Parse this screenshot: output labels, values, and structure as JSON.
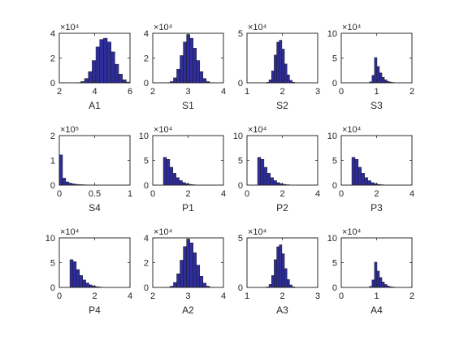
{
  "chart_data": [
    {
      "type": "bar",
      "title": "",
      "xlabel": "A1",
      "exponent": "×10⁴",
      "xlim": [
        2,
        6
      ],
      "ylim": [
        0,
        4
      ],
      "xticks": [
        "2",
        "4",
        "6"
      ],
      "yticks": [
        "0",
        "2",
        "4"
      ],
      "bin_edges": [
        3.0,
        6.0
      ],
      "values": [
        0.02,
        0.1,
        0.35,
        0.9,
        1.8,
        2.9,
        3.5,
        3.6,
        3.3,
        2.5,
        1.5,
        0.7,
        0.25,
        0.06
      ]
    },
    {
      "type": "bar",
      "title": "",
      "xlabel": "S1",
      "exponent": "×10⁴",
      "xlim": [
        2,
        4
      ],
      "ylim": [
        0,
        4
      ],
      "xticks": [
        "2",
        "3",
        "4"
      ],
      "yticks": [
        "0",
        "2",
        "4"
      ],
      "bin_edges": [
        2.4,
        3.7
      ],
      "values": [
        0.02,
        0.1,
        0.4,
        1.1,
        2.2,
        3.3,
        3.9,
        3.6,
        2.8,
        1.8,
        0.9,
        0.35,
        0.1,
        0.02
      ]
    },
    {
      "type": "bar",
      "title": "",
      "xlabel": "S2",
      "exponent": "×10⁴",
      "xlim": [
        1,
        3
      ],
      "ylim": [
        0,
        5
      ],
      "xticks": [
        "1",
        "2",
        "3"
      ],
      "yticks": [
        "0",
        "5"
      ],
      "bin_edges": [
        1.55,
        2.35
      ],
      "values": [
        0.05,
        0.3,
        1.2,
        2.8,
        4.1,
        4.3,
        3.4,
        1.9,
        0.8,
        0.25,
        0.06
      ]
    },
    {
      "type": "bar",
      "title": "",
      "xlabel": "S3",
      "exponent": "×10⁴",
      "xlim": [
        0,
        2
      ],
      "ylim": [
        0,
        10
      ],
      "xticks": [
        "0",
        "1",
        "2"
      ],
      "yticks": [
        "0",
        "5",
        "10"
      ],
      "bin_edges": [
        0.8,
        1.5
      ],
      "values": [
        0.2,
        1.5,
        5.1,
        3.3,
        2.0,
        1.1,
        0.6,
        0.3,
        0.15,
        0.08
      ]
    },
    {
      "type": "bar",
      "title": "",
      "xlabel": "S4",
      "exponent": "×10⁵",
      "xlim": [
        0,
        1
      ],
      "ylim": [
        0,
        2
      ],
      "xticks": [
        "0",
        "0.5",
        "1"
      ],
      "yticks": [
        "0",
        "1",
        "2"
      ],
      "bin_edges": [
        0.0,
        0.5
      ],
      "values": [
        1.22,
        0.28,
        0.13,
        0.08,
        0.05,
        0.03,
        0.02,
        0.015,
        0.01,
        0.008,
        0.005
      ]
    },
    {
      "type": "bar",
      "title": "",
      "xlabel": "P1",
      "exponent": "×10⁴",
      "xlim": [
        0,
        4
      ],
      "ylim": [
        0,
        10
      ],
      "xticks": [
        "0",
        "2",
        "4"
      ],
      "yticks": [
        "0",
        "5",
        "10"
      ],
      "bin_edges": [
        0.6,
        2.4
      ],
      "values": [
        5.6,
        5.2,
        3.6,
        2.4,
        1.5,
        0.9,
        0.5,
        0.3,
        0.15,
        0.08
      ]
    },
    {
      "type": "bar",
      "title": "",
      "xlabel": "P2",
      "exponent": "×10⁴",
      "xlim": [
        0,
        4
      ],
      "ylim": [
        0,
        10
      ],
      "xticks": [
        "0",
        "2",
        "4"
      ],
      "yticks": [
        "0",
        "5",
        "10"
      ],
      "bin_edges": [
        0.6,
        2.4
      ],
      "values": [
        5.6,
        5.2,
        3.6,
        2.4,
        1.5,
        0.9,
        0.5,
        0.3,
        0.15,
        0.08
      ]
    },
    {
      "type": "bar",
      "title": "",
      "xlabel": "P3",
      "exponent": "×10⁴",
      "xlim": [
        0,
        4
      ],
      "ylim": [
        0,
        10
      ],
      "xticks": [
        "0",
        "2",
        "4"
      ],
      "yticks": [
        "0",
        "5",
        "10"
      ],
      "bin_edges": [
        0.6,
        2.4
      ],
      "values": [
        5.6,
        5.2,
        3.6,
        2.4,
        1.5,
        0.9,
        0.5,
        0.3,
        0.15,
        0.08
      ]
    },
    {
      "type": "bar",
      "title": "",
      "xlabel": "P4",
      "exponent": "×10⁴",
      "xlim": [
        0,
        4
      ],
      "ylim": [
        0,
        10
      ],
      "xticks": [
        "0",
        "2",
        "4"
      ],
      "yticks": [
        "0",
        "5",
        "10"
      ],
      "bin_edges": [
        0.6,
        2.4
      ],
      "values": [
        5.6,
        5.2,
        3.6,
        2.4,
        1.5,
        0.9,
        0.5,
        0.3,
        0.15,
        0.08
      ]
    },
    {
      "type": "bar",
      "title": "",
      "xlabel": "A2",
      "exponent": "×10⁴",
      "xlim": [
        2,
        4
      ],
      "ylim": [
        0,
        4
      ],
      "xticks": [
        "2",
        "3",
        "4"
      ],
      "yticks": [
        "0",
        "2",
        "4"
      ],
      "bin_edges": [
        2.4,
        3.7
      ],
      "values": [
        0.02,
        0.1,
        0.4,
        1.1,
        2.2,
        3.3,
        3.9,
        3.6,
        2.8,
        1.8,
        0.9,
        0.35,
        0.1,
        0.02
      ]
    },
    {
      "type": "bar",
      "title": "",
      "xlabel": "A3",
      "exponent": "×10⁴",
      "xlim": [
        1,
        3
      ],
      "ylim": [
        0,
        5
      ],
      "xticks": [
        "1",
        "2",
        "3"
      ],
      "yticks": [
        "0",
        "5"
      ],
      "bin_edges": [
        1.55,
        2.35
      ],
      "values": [
        0.05,
        0.3,
        1.2,
        2.8,
        4.1,
        4.3,
        3.4,
        1.9,
        0.8,
        0.25,
        0.06
      ]
    },
    {
      "type": "bar",
      "title": "",
      "xlabel": "A4",
      "exponent": "×10⁴",
      "xlim": [
        0,
        2
      ],
      "ylim": [
        0,
        10
      ],
      "xticks": [
        "0",
        "1",
        "2"
      ],
      "yticks": [
        "0",
        "5",
        "10"
      ],
      "bin_edges": [
        0.8,
        1.5
      ],
      "values": [
        0.2,
        1.5,
        5.1,
        3.3,
        2.0,
        1.1,
        0.6,
        0.3,
        0.15,
        0.08
      ]
    }
  ],
  "colors": {
    "bar_fill": "#2e2d9c",
    "bar_edge": "#1a1a1a",
    "axis": "#262626"
  }
}
